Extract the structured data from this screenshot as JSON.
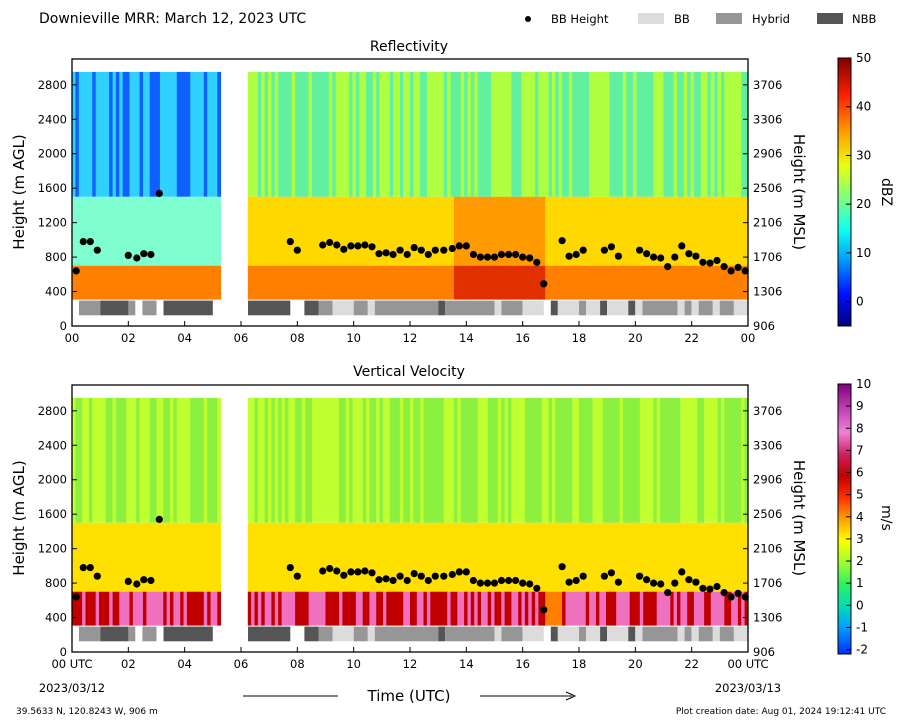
{
  "header": {
    "title": "Downieville MRR:  March 12, 2023 UTC",
    "legend": [
      {
        "label": "BB Height",
        "kind": "dot",
        "color": "#000000"
      },
      {
        "label": "BB",
        "kind": "box",
        "color": "#dcdcdc"
      },
      {
        "label": "Hybrid",
        "kind": "box",
        "color": "#969696"
      },
      {
        "label": "NBB",
        "kind": "box",
        "color": "#555555"
      }
    ]
  },
  "footer": {
    "location": "39.5633 N, 120.8243 W, 906 m",
    "created": "Plot creation date: Aug 01, 2024 19:12:41 UTC",
    "xlabel": "Time (UTC)",
    "start_date": "2023/03/12",
    "end_date": "2023/03/13"
  },
  "chart_data": [
    {
      "type": "heatmap",
      "title": "Reflectivity",
      "xlabel": "Time (UTC)",
      "ylabel": "Height (m AGL)",
      "ylabel_right": "Height (m MSL)",
      "xlim": [
        0,
        24
      ],
      "ylim": [
        0,
        3100
      ],
      "x_ticks": [
        "00",
        "02",
        "04",
        "06",
        "08",
        "10",
        "12",
        "14",
        "16",
        "18",
        "20",
        "22",
        "00"
      ],
      "y_ticks": [
        0,
        400,
        800,
        1200,
        1600,
        2000,
        2400,
        2800
      ],
      "y_ticks_right": [
        906,
        1306,
        1706,
        2106,
        2506,
        2906,
        3306,
        3706
      ],
      "colorbar": {
        "label": "dBZ",
        "min": -5,
        "max": 50,
        "ticks": [
          0,
          10,
          20,
          30,
          40,
          50
        ]
      },
      "grid": false
    },
    {
      "type": "heatmap",
      "title": "Vertical Velocity",
      "xlabel": "Time (UTC)",
      "ylabel": "Height (m AGL)",
      "ylabel_right": "Height (m MSL)",
      "xlim": [
        0,
        24
      ],
      "ylim": [
        0,
        3100
      ],
      "x_ticks": [
        "00 UTC",
        "02",
        "04",
        "06",
        "08",
        "10",
        "12",
        "14",
        "16",
        "18",
        "20",
        "22",
        "00 UTC"
      ],
      "y_ticks": [
        0,
        400,
        800,
        1200,
        1600,
        2000,
        2400,
        2800
      ],
      "y_ticks_right": [
        906,
        1306,
        1706,
        2106,
        2506,
        2906,
        3306,
        3706
      ],
      "colorbar": {
        "label": "m/s",
        "min": -2.2,
        "max": 10,
        "ticks": [
          -2,
          -1,
          0,
          1,
          2,
          3,
          4,
          5,
          6,
          7,
          8,
          9,
          10
        ]
      },
      "grid": false
    }
  ],
  "bb_height": {
    "t": [
      0.15,
      0.4,
      0.65,
      0.9,
      2.0,
      2.3,
      2.55,
      2.8,
      3.1,
      7.75,
      8.0,
      8.9,
      9.15,
      9.4,
      9.65,
      9.9,
      10.15,
      10.4,
      10.65,
      10.9,
      11.15,
      11.4,
      11.65,
      11.9,
      12.15,
      12.4,
      12.65,
      12.9,
      13.2,
      13.5,
      13.75,
      14.0,
      14.25,
      14.5,
      14.75,
      15.0,
      15.25,
      15.5,
      15.75,
      16.0,
      16.25,
      16.5,
      16.75,
      17.4,
      17.65,
      17.9,
      18.15,
      18.9,
      19.15,
      19.4,
      20.15,
      20.4,
      20.65,
      20.9,
      21.15,
      21.4,
      21.65,
      21.9,
      22.15,
      22.4,
      22.65,
      22.9,
      23.15,
      23.4,
      23.65,
      23.9
    ],
    "h": [
      640,
      980,
      980,
      880,
      820,
      790,
      840,
      830,
      1540,
      980,
      880,
      940,
      970,
      940,
      890,
      930,
      930,
      940,
      920,
      840,
      850,
      830,
      880,
      830,
      910,
      880,
      830,
      880,
      880,
      900,
      930,
      930,
      830,
      800,
      800,
      800,
      830,
      830,
      830,
      800,
      790,
      740,
      490,
      990,
      810,
      830,
      880,
      880,
      920,
      810,
      880,
      840,
      800,
      790,
      690,
      800,
      930,
      840,
      810,
      740,
      730,
      760,
      690,
      640,
      680,
      640
    ]
  },
  "bb_type_bar": [
    {
      "start": 0.25,
      "end": 1.0,
      "type": "Hybrid"
    },
    {
      "start": 1.0,
      "end": 2.0,
      "type": "NBB"
    },
    {
      "start": 2.0,
      "end": 2.25,
      "type": "Hybrid"
    },
    {
      "start": 2.5,
      "end": 3.0,
      "type": "Hybrid"
    },
    {
      "start": 3.25,
      "end": 5.0,
      "type": "NBB"
    },
    {
      "start": 6.25,
      "end": 7.75,
      "type": "NBB"
    },
    {
      "start": 8.25,
      "end": 8.75,
      "type": "NBB"
    },
    {
      "start": 8.75,
      "end": 9.25,
      "type": "Hybrid"
    },
    {
      "start": 9.25,
      "end": 10.0,
      "type": "BB"
    },
    {
      "start": 10.0,
      "end": 10.5,
      "type": "Hybrid"
    },
    {
      "start": 10.5,
      "end": 10.75,
      "type": "BB"
    },
    {
      "start": 10.75,
      "end": 13.0,
      "type": "Hybrid"
    },
    {
      "start": 13.0,
      "end": 13.25,
      "type": "NBB"
    },
    {
      "start": 13.25,
      "end": 15.0,
      "type": "Hybrid"
    },
    {
      "start": 15.0,
      "end": 15.25,
      "type": "BB"
    },
    {
      "start": 15.25,
      "end": 16.0,
      "type": "Hybrid"
    },
    {
      "start": 16.0,
      "end": 16.75,
      "type": "BB"
    },
    {
      "start": 17.0,
      "end": 17.25,
      "type": "NBB"
    },
    {
      "start": 17.25,
      "end": 18.0,
      "type": "BB"
    },
    {
      "start": 18.0,
      "end": 18.25,
      "type": "Hybrid"
    },
    {
      "start": 18.25,
      "end": 18.75,
      "type": "BB"
    },
    {
      "start": 18.75,
      "end": 19.0,
      "type": "NBB"
    },
    {
      "start": 19.0,
      "end": 19.75,
      "type": "BB"
    },
    {
      "start": 19.75,
      "end": 20.0,
      "type": "NBB"
    },
    {
      "start": 20.0,
      "end": 20.25,
      "type": "BB"
    },
    {
      "start": 20.25,
      "end": 21.5,
      "type": "Hybrid"
    },
    {
      "start": 21.5,
      "end": 21.75,
      "type": "BB"
    },
    {
      "start": 21.75,
      "end": 22.0,
      "type": "Hybrid"
    },
    {
      "start": 22.0,
      "end": 22.25,
      "type": "BB"
    },
    {
      "start": 22.25,
      "end": 22.75,
      "type": "Hybrid"
    },
    {
      "start": 22.75,
      "end": 23.0,
      "type": "BB"
    },
    {
      "start": 23.0,
      "end": 23.5,
      "type": "Hybrid"
    },
    {
      "start": 23.5,
      "end": 24.0,
      "type": "BB"
    }
  ],
  "data_gaps": [
    [
      5.25,
      6.25
    ]
  ]
}
